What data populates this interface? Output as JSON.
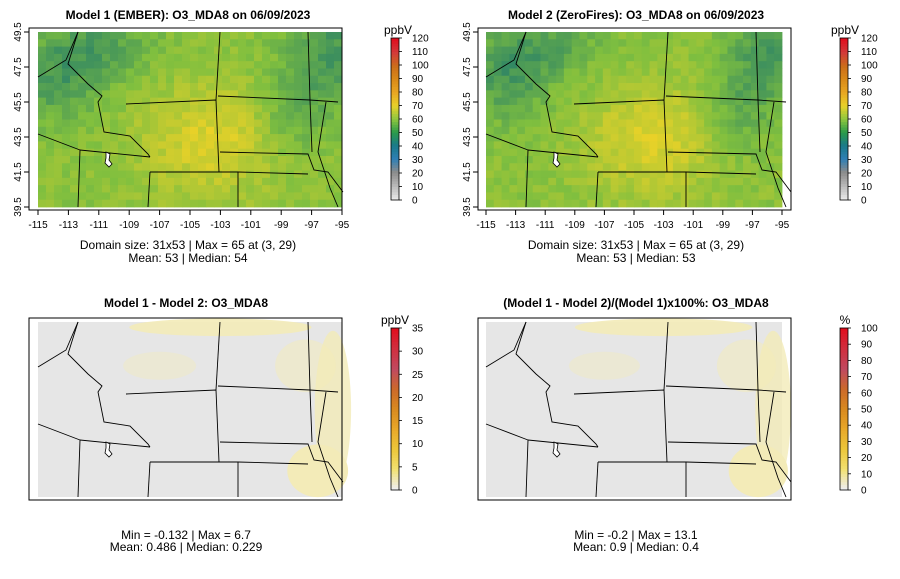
{
  "panels": [
    {
      "id": "model1",
      "title": "Model 1 (EMBER): O3_MDA8 on 06/09/2023",
      "stat_line1": "Domain size: 31x53 | Max = 65 at (3, 29)",
      "stat_line2": "Mean: 53 |  Median: 54",
      "unit": "ppbV",
      "scale_ticks": [
        "0",
        "10",
        "20",
        "30",
        "40",
        "50",
        "60",
        "70",
        "80",
        "90",
        "100",
        "110",
        "120"
      ],
      "field": "concentration",
      "colors": {
        "low": "#1f7a6c",
        "mid": "#7fbf3f",
        "high": "#f2d326"
      }
    },
    {
      "id": "model2",
      "title": "Model 2 (ZeroFires): O3_MDA8 on 06/09/2023",
      "stat_line1": "Domain size: 31x53 | Max = 65 at (3, 29)",
      "stat_line2": "Mean: 53 |  Median: 53",
      "unit": "ppbV",
      "scale_ticks": [
        "0",
        "10",
        "20",
        "30",
        "40",
        "50",
        "60",
        "70",
        "80",
        "90",
        "100",
        "110",
        "120"
      ],
      "field": "concentration",
      "colors": {
        "low": "#1f7a6c",
        "mid": "#7fbf3f",
        "high": "#f2d326"
      }
    },
    {
      "id": "diff",
      "title": "Model 1 - Model 2: O3_MDA8",
      "stat_line1": "Min = -0.132 | Max = 6.7",
      "stat_line2": "Mean: 0.486 |  Median: 0.229",
      "unit": "ppbV",
      "scale_ticks": [
        "0",
        "5",
        "10",
        "15",
        "20",
        "25",
        "30",
        "35"
      ],
      "field": "difference",
      "colors": {
        "base": "#e6e6e6",
        "tint": "#f3ebb8"
      }
    },
    {
      "id": "pct",
      "title": "(Model 1 - Model 2)/(Model 1)x100%: O3_MDA8",
      "stat_line1": "Min = -0.2 | Max = 13.1",
      "stat_line2": "Mean: 0.9 | Median: 0.4",
      "unit": "%",
      "scale_ticks": [
        "0",
        "10",
        "20",
        "30",
        "40",
        "50",
        "60",
        "70",
        "80",
        "90",
        "100"
      ],
      "field": "difference",
      "colors": {
        "base": "#e6e6e6",
        "tint": "#f3ebb8"
      }
    }
  ],
  "x_ticks": [
    "-115",
    "-113",
    "-111",
    "-109",
    "-107",
    "-105",
    "-103",
    "-101",
    "-99",
    "-97",
    "-95"
  ],
  "y_ticks": [
    "39.5",
    "41.5",
    "43.5",
    "45.5",
    "47.5",
    "49.5"
  ]
}
